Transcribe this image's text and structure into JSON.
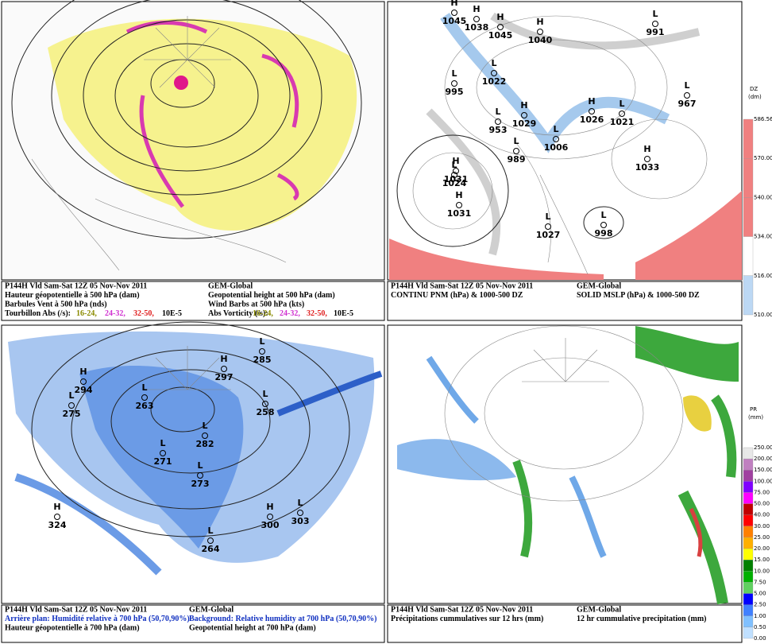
{
  "panels": [
    {
      "caption_left": [
        "P144H Vld Sam-Sat 12Z 05 Nov-Nov 2011",
        "Hauteur géopotentielle à 500 hPa (dam)",
        "Barbules Vent à 500 hPa (nds)",
        "Tourbillon Abs (/s):"
      ],
      "caption_right": [
        "GEM-Global",
        "Geopotential height at 500 hPa (dam)",
        "Wind Barbs at 500 hPa (kts)",
        "Abs Vorticity (/s):"
      ],
      "vorticity_ranges": [
        "16-24,",
        "24-32,",
        "32-50,",
        "10E-5"
      ]
    },
    {
      "caption_left": [
        "P144H Vld Sam-Sat 12Z 05 Nov-Nov 2011",
        "CONTINU PNM  (hPa) & 1000-500 DZ"
      ],
      "caption_right": [
        "GEM-Global",
        "SOLID   MSLP (hPa) & 1000-500 DZ"
      ],
      "colorbar": {
        "title": "DZ",
        "unit": "(dm)",
        "labels": [
          "586.56",
          "570.00",
          "540.00",
          "534.00",
          "516.00",
          "510.00"
        ]
      },
      "centers": [
        {
          "type": "H",
          "value": "1045"
        },
        {
          "type": "H",
          "value": "1038"
        },
        {
          "type": "H",
          "value": "1045"
        },
        {
          "type": "H",
          "value": "1040"
        },
        {
          "type": "L",
          "value": "995"
        },
        {
          "type": "H",
          "value": "1031"
        },
        {
          "type": "L",
          "value": "1022"
        },
        {
          "type": "L",
          "value": "953"
        },
        {
          "type": "H",
          "value": "1029"
        },
        {
          "type": "L",
          "value": "1006"
        },
        {
          "type": "L",
          "value": "989"
        },
        {
          "type": "L",
          "value": "1024"
        },
        {
          "type": "H",
          "value": "1031"
        },
        {
          "type": "L",
          "value": "1027"
        },
        {
          "type": "L",
          "value": "998"
        },
        {
          "type": "H",
          "value": "1033"
        },
        {
          "type": "L",
          "value": "991"
        },
        {
          "type": "L",
          "value": "967"
        },
        {
          "type": "L",
          "value": "1021"
        },
        {
          "type": "H",
          "value": "1026"
        }
      ]
    },
    {
      "caption_left": [
        "P144H Vld Sam-Sat 12Z 05 Nov-Nov 2011",
        "Arrière plan: Humidité relative à 700 hPa (50,70,90%)",
        "Hauteur géopotentielle à 700 hPa (dam)"
      ],
      "caption_right": [
        "GEM-Global",
        "Background: Relative humidity at 700 hPa (50,70,90%)",
        "Geopotential height at 700 hPa (dam)"
      ],
      "centers": [
        {
          "type": "H",
          "value": "294"
        },
        {
          "type": "L",
          "value": "275"
        },
        {
          "type": "L",
          "value": "263"
        },
        {
          "type": "L",
          "value": "282"
        },
        {
          "type": "L",
          "value": "271"
        },
        {
          "type": "L",
          "value": "273"
        },
        {
          "type": "H",
          "value": "297"
        },
        {
          "type": "L",
          "value": "285"
        },
        {
          "type": "L",
          "value": "258"
        },
        {
          "type": "H",
          "value": "324"
        },
        {
          "type": "H",
          "value": "300"
        },
        {
          "type": "L",
          "value": "303"
        },
        {
          "type": "L",
          "value": "264"
        }
      ]
    },
    {
      "caption_left": [
        "P144H Vld Sam-Sat 12Z 05 Nov-Nov 2011",
        "Précipitations cummulatives sur 12 hrs (mm)"
      ],
      "caption_right": [
        "GEM-Global",
        "12 hr cummulative precipitation      (mm)"
      ],
      "colorbar": {
        "title": "PR",
        "unit": "(mm)",
        "labels": [
          "250.00",
          "200.00",
          "150.00",
          "100.00",
          "75.00",
          "50.00",
          "40.00",
          "30.00",
          "25.00",
          "20.00",
          "15.00",
          "10.00",
          "7.50",
          "5.00",
          "2.50",
          "1.00",
          "0.50",
          "0.00"
        ]
      }
    }
  ]
}
